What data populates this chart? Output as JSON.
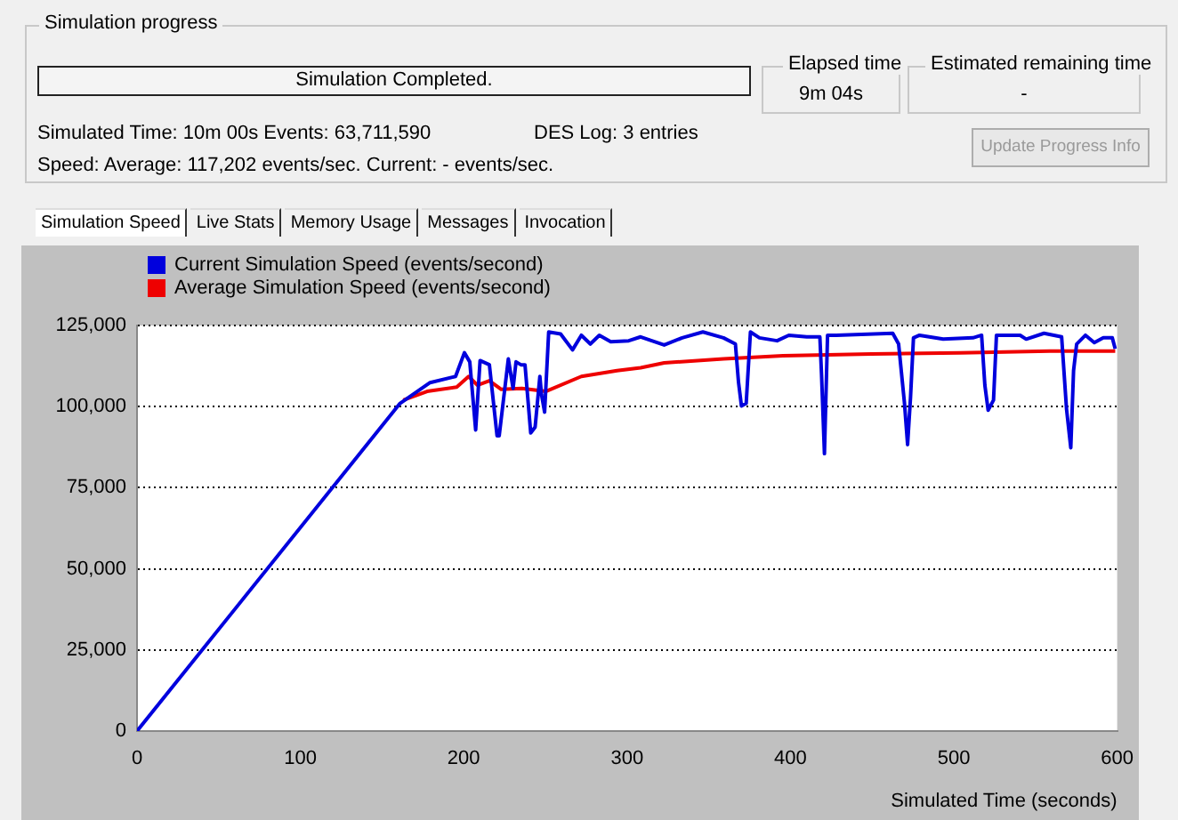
{
  "chart_data": {
    "type": "line",
    "xlabel": "Simulated Time (seconds)",
    "annotations": [
      "Simulation progress",
      "Simulation Completed.",
      "Elapsed time",
      "9m 04s",
      "Estimated remaining time",
      "-",
      "Simulated Time:  10m 00s  Events:  63,711,590",
      "DES Log: 3 entries",
      "Speed: Average:  117,202  events/sec. Current:  -  events/sec.",
      "Update Progress Info",
      "Simulation Speed",
      "Live Stats",
      "Memory Usage",
      "Messages",
      "Invocation"
    ],
    "series": [
      {
        "name": "Current Simulation Speed (events/second)",
        "color": "#0000dd",
        "x": [
          0,
          161,
          179.4,
          195,
          200.4,
          203.7,
          207.3,
          210,
          215.7,
          220.4,
          221.7,
          227.3,
          230.2,
          232,
          235,
          237.5,
          241,
          243.7,
          246.6,
          247.6,
          249.5,
          252,
          259.3,
          266.6,
          272,
          277.5,
          283,
          290,
          301,
          308.3,
          322.7,
          333.7,
          346.4,
          359,
          366.3,
          368.2,
          370,
          372.9,
          375.5,
          381,
          391.8,
          399,
          410,
          418,
          419,
          420.8,
          422.7,
          428,
          462.6,
          466.2,
          469.8,
          471.7,
          473.5,
          475.3,
          479,
          493.5,
          511.7,
          517,
          519,
          521,
          524.3,
          526.1,
          540.6,
          544.3,
          555.2,
          566,
          569,
          571.6,
          573.3,
          575.2,
          580.6,
          586,
          591.5,
          597,
          598.8
        ],
        "values": [
          0,
          101000,
          107400,
          109300,
          116600,
          113800,
          92800,
          114200,
          112900,
          91000,
          91000,
          114700,
          105600,
          113800,
          112900,
          112900,
          91900,
          93700,
          109300,
          103800,
          98300,
          123000,
          122400,
          117500,
          122000,
          119300,
          122000,
          120000,
          120300,
          121500,
          119000,
          121200,
          123000,
          121200,
          119300,
          107500,
          100200,
          101000,
          123000,
          121200,
          120300,
          122000,
          121500,
          121500,
          110200,
          85500,
          122000,
          122000,
          122600,
          119300,
          101000,
          88300,
          102900,
          121200,
          122000,
          120800,
          121200,
          122000,
          106600,
          98900,
          102000,
          122000,
          122000,
          120800,
          122600,
          121500,
          99200,
          87300,
          111100,
          119300,
          122000,
          119700,
          121200,
          121200,
          117800
        ]
      },
      {
        "name": "Average Simulation Speed (events/second)",
        "color": "#ee0000",
        "x": [
          163,
          177.6,
          195.7,
          203,
          208.4,
          215.7,
          223,
          235.6,
          250.2,
          272,
          293.8,
          308.3,
          322.7,
          359,
          395.4,
          449.6,
          504,
          558.8,
          598.8
        ],
        "values": [
          102000,
          104700,
          106000,
          109300,
          106600,
          108000,
          105300,
          105600,
          104700,
          109300,
          111100,
          112000,
          113500,
          114700,
          115700,
          116200,
          116600,
          117100,
          117100
        ]
      }
    ],
    "xlim": [
      0,
      600
    ],
    "xticks": [
      0,
      100,
      200,
      300,
      400,
      500,
      600
    ],
    "ylim": [
      0,
      125000
    ],
    "yticks": [
      0,
      {
        "value": 25000,
        "label": "25,000"
      },
      {
        "value": 50000,
        "label": "50,000"
      },
      {
        "value": 75000,
        "label": "75,000"
      },
      {
        "value": 100000,
        "label": "100,000"
      },
      {
        "value": 125000,
        "label": "125,000"
      }
    ],
    "grid": "y",
    "legend": "top left"
  }
}
